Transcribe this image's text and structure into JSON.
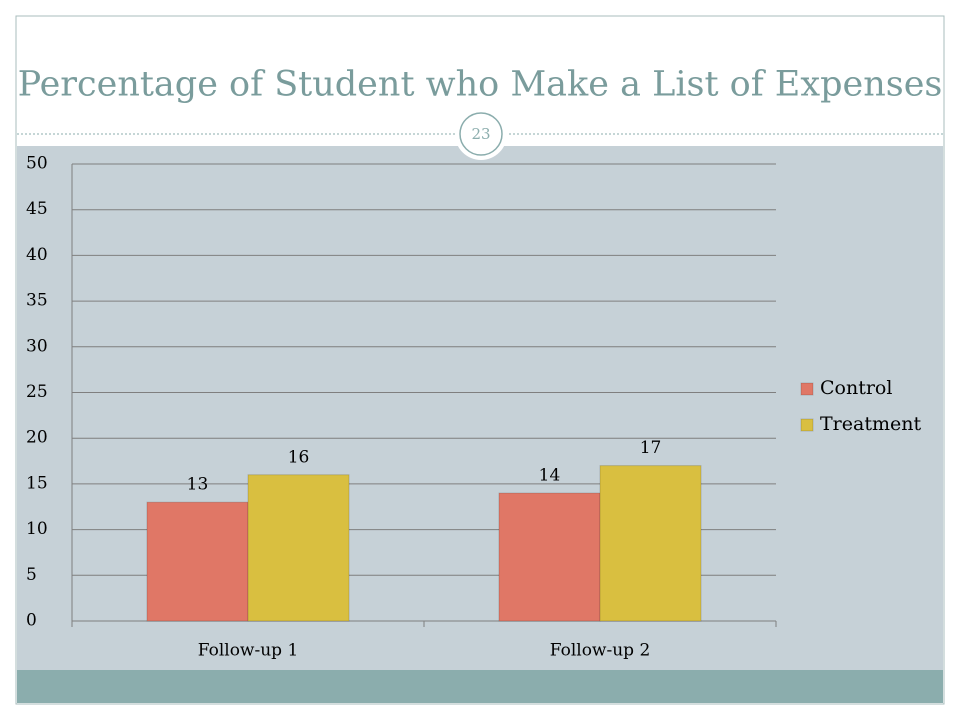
{
  "slide": {
    "number": "23"
  },
  "chart_data": {
    "type": "bar",
    "title": "Percentage of Student who Make a List of Expenses",
    "categories": [
      "Follow-up 1",
      "Follow-up 2"
    ],
    "series": [
      {
        "name": "Control",
        "color": "#e07766",
        "values": [
          13,
          14
        ]
      },
      {
        "name": "Treatment",
        "color": "#d9bf40",
        "values": [
          16,
          17
        ]
      }
    ],
    "ylim": [
      0,
      50
    ],
    "yticks": [
      0,
      5,
      10,
      15,
      20,
      25,
      30,
      35,
      40,
      45,
      50
    ],
    "grid": true,
    "legend": "right"
  }
}
